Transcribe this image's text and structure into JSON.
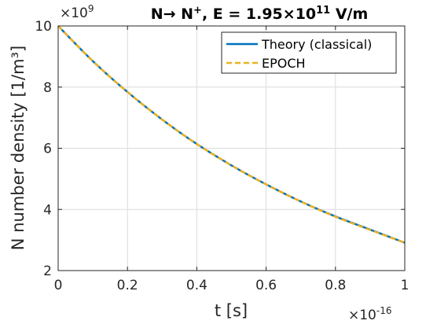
{
  "chart_data": {
    "type": "line",
    "title": {
      "prefix": "N→ N",
      "sup1": "+",
      "middle": ", E = 1.95×10",
      "sup2": "11",
      "suffix": " V/m"
    },
    "xlabel": "t [s]",
    "ylabel": "N number density [1/m³]",
    "x_multiplier": {
      "base": "×10",
      "exp": "-16"
    },
    "y_multiplier": {
      "base": "×10",
      "exp": "9"
    },
    "xlim": [
      0,
      1
    ],
    "ylim": [
      2,
      10
    ],
    "x_ticks": [
      0,
      0.2,
      0.4,
      0.6,
      0.8,
      1
    ],
    "x_tick_labels": [
      "0",
      "0.2",
      "0.4",
      "0.6",
      "0.8",
      "1"
    ],
    "y_ticks": [
      2,
      4,
      6,
      8,
      10
    ],
    "y_tick_labels": [
      "2",
      "4",
      "6",
      "8",
      "10"
    ],
    "grid": true,
    "legend_position": "top-right",
    "series": [
      {
        "name": "Theory (classical)",
        "color": "#0072bd",
        "style": "solid",
        "x": [
          0,
          0.1,
          0.2,
          0.3,
          0.4,
          0.5,
          0.6,
          0.7,
          0.8,
          0.9,
          1.0
        ],
        "y": [
          10.0,
          8.85,
          7.84,
          6.94,
          6.14,
          5.44,
          4.82,
          4.26,
          3.77,
          3.34,
          2.91
        ]
      },
      {
        "name": "EPOCH",
        "color": "#edb120",
        "style": "dashed",
        "x": [
          0,
          0.1,
          0.2,
          0.3,
          0.4,
          0.5,
          0.6,
          0.7,
          0.8,
          0.9,
          1.0
        ],
        "y": [
          10.0,
          8.85,
          7.84,
          6.94,
          6.14,
          5.44,
          4.82,
          4.26,
          3.76,
          3.33,
          2.91
        ]
      }
    ]
  }
}
